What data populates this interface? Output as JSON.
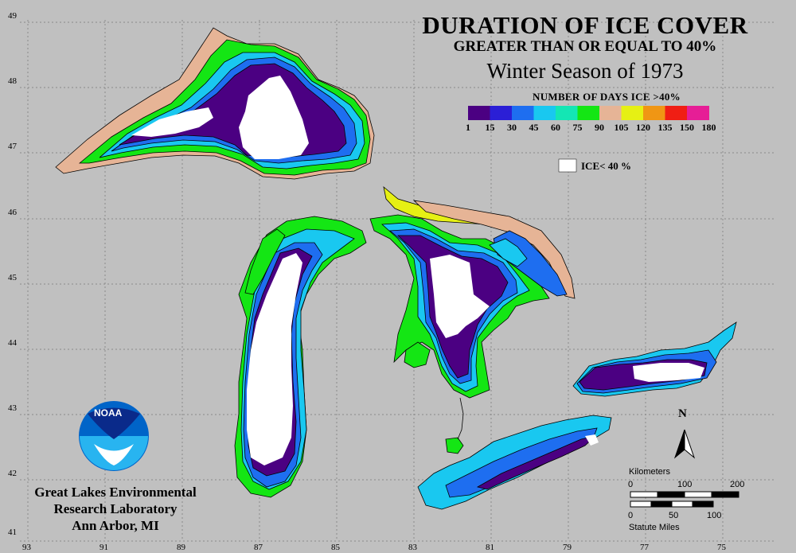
{
  "title": "DURATION OF ICE COVER",
  "subtitle": "GREATER THAN OR EQUAL TO 40%",
  "season": "Winter Season of 1973",
  "legend": {
    "title": "NUMBER OF DAYS ICE >40%",
    "ticks": [
      "1",
      "15",
      "30",
      "45",
      "60",
      "75",
      "90",
      "105",
      "120",
      "135",
      "150",
      "180"
    ],
    "colors": [
      "#4b0082",
      "#2b1fd6",
      "#1e6ef0",
      "#19c8f0",
      "#14e6b4",
      "#14e614",
      "#e6b496",
      "#e6f014",
      "#f09614",
      "#f01e14",
      "#e61e96"
    ],
    "ice_lt_label": "ICE< 40 %",
    "ice_lt_color": "#ffffff"
  },
  "axes": {
    "lon_labels": [
      "93",
      "91",
      "89",
      "87",
      "85",
      "83",
      "81",
      "79",
      "77",
      "75"
    ],
    "lat_labels": [
      "49",
      "48",
      "47",
      "46",
      "45",
      "44",
      "43",
      "42",
      "41"
    ]
  },
  "logo": {
    "text": "NOAA"
  },
  "credit": {
    "line1": "Great Lakes Environmental",
    "line2": "Research Laboratory",
    "line3": "Ann Arbor, MI"
  },
  "north_label": "N",
  "scale": {
    "km_label": "Kilometers",
    "km_ticks": [
      "0",
      "100",
      "200"
    ],
    "mi_ticks": [
      "0",
      "50",
      "100"
    ],
    "mi_label": "Statute Miles"
  },
  "colors": {
    "background": "#c0c0c0",
    "land_outline": "#000000",
    "grid": "#808080"
  }
}
